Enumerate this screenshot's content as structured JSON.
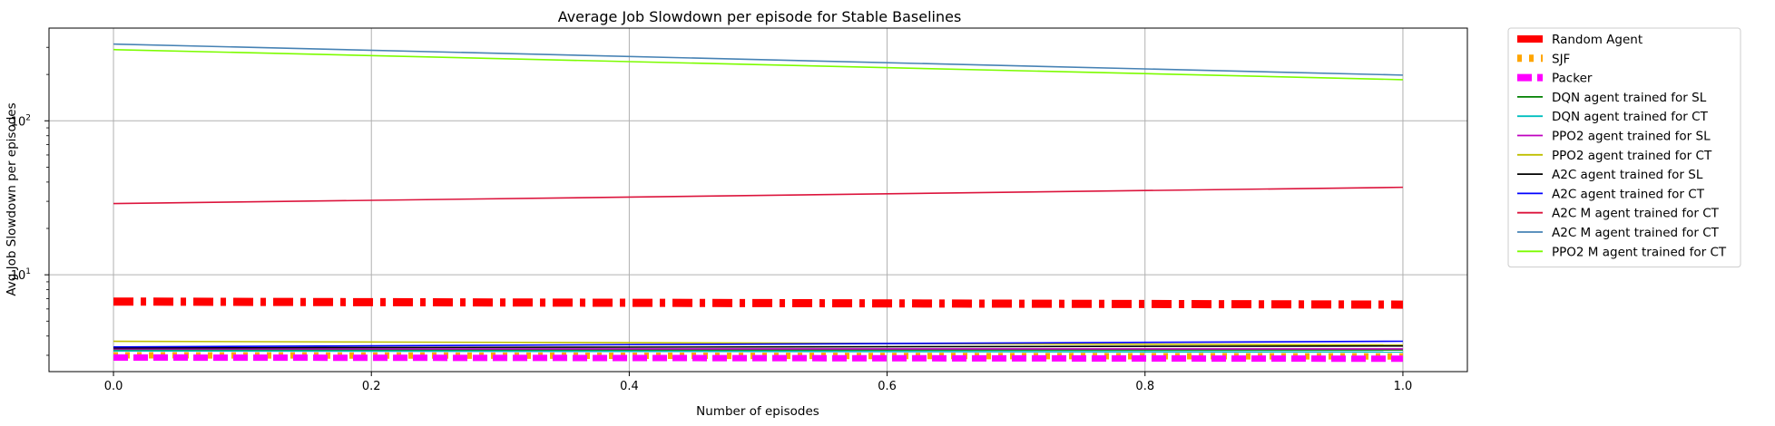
{
  "chart_data": {
    "type": "line",
    "title": "Average Job Slowdown per episode for Stable Baselines",
    "xlabel": "Number of episodes",
    "ylabel": "Avg Job Slowdown per episodes",
    "xlim": [
      -0.05,
      1.05
    ],
    "ylim": [
      2.35,
      400
    ],
    "yscale": "log",
    "grid": true,
    "legend_position": "outside-right",
    "x_ticks": [
      "0.0",
      "0.2",
      "0.4",
      "0.6",
      "0.8",
      "1.0"
    ],
    "y_ticks": [
      {
        "value": 10,
        "base": "10",
        "exp": "1"
      },
      {
        "value": 100,
        "base": "10",
        "exp": "2"
      }
    ],
    "x": [
      0.0,
      1.0
    ],
    "series": [
      {
        "name": "Random Agent",
        "values": [
          6.7,
          6.4
        ],
        "color": "#ff0000",
        "style": "dashdot",
        "width": 9
      },
      {
        "name": "SJF",
        "values": [
          3.0,
          2.95
        ],
        "color": "#ffa500",
        "style": "dotted",
        "width": 7
      },
      {
        "name": "Packer",
        "values": [
          2.9,
          2.85
        ],
        "color": "#ff00ff",
        "style": "dashed",
        "width": 7
      },
      {
        "name": "DQN agent trained for SL",
        "values": [
          3.25,
          3.25
        ],
        "color": "#008000",
        "style": "solid",
        "width": 1.6
      },
      {
        "name": "DQN agent trained for CT",
        "values": [
          3.2,
          3.15
        ],
        "color": "#00bfbf",
        "style": "solid",
        "width": 1.6
      },
      {
        "name": "PPO2 agent trained for SL",
        "values": [
          3.3,
          3.3
        ],
        "color": "#bf00bf",
        "style": "solid",
        "width": 1.6
      },
      {
        "name": "PPO2 agent trained for CT",
        "values": [
          3.7,
          3.5
        ],
        "color": "#bfbf00",
        "style": "solid",
        "width": 1.6
      },
      {
        "name": "A2C agent trained for SL",
        "values": [
          3.35,
          3.45
        ],
        "color": "#000000",
        "style": "solid",
        "width": 1.6
      },
      {
        "name": "A2C agent trained for CT",
        "values": [
          3.4,
          3.7
        ],
        "color": "#0000ff",
        "style": "solid",
        "width": 1.6
      },
      {
        "name": "A2C M agent trained for CT",
        "values": [
          29,
          37
        ],
        "color": "#dc143c",
        "style": "solid",
        "width": 1.6
      },
      {
        "name": "A2C M agent trained for CT",
        "values": [
          315,
          198
        ],
        "color": "#4682b4",
        "style": "solid",
        "width": 1.6
      },
      {
        "name": "PPO2 M agent trained for CT",
        "values": [
          290,
          185
        ],
        "color": "#7cfc00",
        "style": "solid",
        "width": 1.6
      }
    ]
  }
}
